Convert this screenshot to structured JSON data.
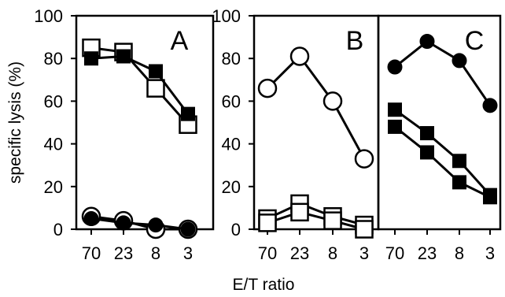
{
  "chart_data": [
    {
      "panel": "A",
      "type": "line",
      "x": [
        "70",
        "23",
        "8",
        "3"
      ],
      "ylim": [
        0,
        100
      ],
      "yticks": [
        "0",
        "20",
        "40",
        "60",
        "80",
        "100"
      ],
      "ylabel": "specific lysis (%)",
      "series": [
        {
          "marker": "open-square",
          "values": [
            85,
            83,
            66,
            49
          ]
        },
        {
          "marker": "filled-square",
          "values": [
            80,
            81,
            74,
            54
          ]
        },
        {
          "marker": "open-circle",
          "values": [
            6,
            4,
            0,
            0
          ]
        },
        {
          "marker": "filled-circle",
          "values": [
            5,
            3,
            2,
            0
          ]
        }
      ]
    },
    {
      "panel": "B",
      "type": "line",
      "x": [
        "70",
        "23",
        "8",
        "3"
      ],
      "ylim": [
        0,
        100
      ],
      "yticks": [
        "0",
        "20",
        "40",
        "60",
        "80",
        "100"
      ],
      "series": [
        {
          "marker": "open-circle",
          "values": [
            66,
            81,
            60,
            33
          ]
        },
        {
          "marker": "open-square",
          "values": [
            5,
            12,
            6,
            2
          ]
        },
        {
          "marker": "open-square",
          "values": [
            3,
            8,
            4,
            0
          ]
        }
      ]
    },
    {
      "panel": "C",
      "type": "line",
      "x": [
        "70",
        "23",
        "8",
        "3"
      ],
      "ylim": [
        0,
        100
      ],
      "series": [
        {
          "marker": "filled-circle",
          "values": [
            76,
            88,
            79,
            58
          ]
        },
        {
          "marker": "filled-square",
          "values": [
            56,
            45,
            32,
            16
          ]
        },
        {
          "marker": "filled-square",
          "values": [
            48,
            36,
            22,
            15
          ]
        }
      ]
    }
  ],
  "xlabel": "E/T ratio"
}
